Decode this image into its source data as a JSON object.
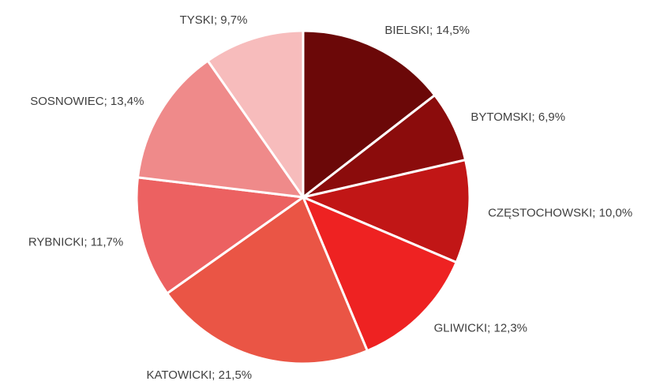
{
  "chart_data": {
    "type": "pie",
    "values": [
      14.5,
      6.9,
      10.0,
      12.3,
      21.5,
      11.7,
      13.4,
      9.7
    ],
    "value_labels": [
      "BIELSKI; 14,5%",
      "BYTOMSKI; 6,9%",
      "CZĘSTOCHOWSKI; 10,0%",
      "GLIWICKI; 12,3%",
      "KATOWICKI; 21,5%",
      "RYBNICKI; 11,7%",
      "SOSNOWIEC; 13,4%",
      "TYSKI; 9,7%"
    ],
    "colors": [
      "#6b0808",
      "#8b0c0c",
      "#c11616",
      "#ee2222",
      "#ea5545",
      "#ec6161",
      "#ef8a8a",
      "#f7bcbc"
    ]
  }
}
